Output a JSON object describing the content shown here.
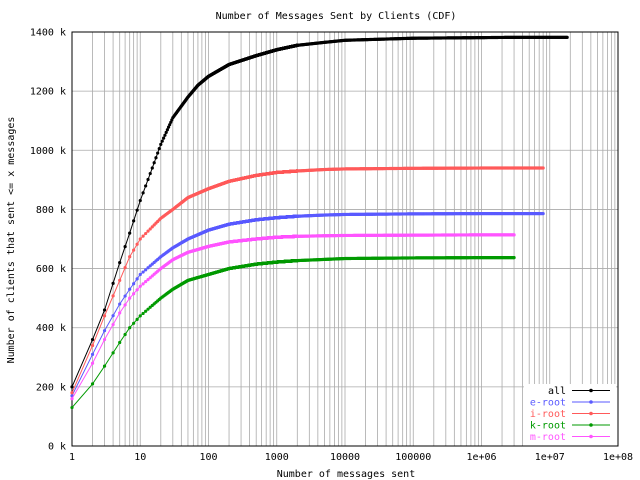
{
  "chart_data": {
    "type": "line",
    "title": "Number of Messages Sent by Clients (CDF)",
    "xlabel": "Number of messages sent",
    "ylabel": "Number of clients that sent <= x messages",
    "x_scale": "log",
    "xlim": [
      1,
      100000000
    ],
    "ylim": [
      0,
      1400000
    ],
    "grid": true,
    "legend_position": "bottom-right",
    "x_ticks": [
      {
        "value": 1,
        "label": "1"
      },
      {
        "value": 10,
        "label": "10"
      },
      {
        "value": 100,
        "label": "100"
      },
      {
        "value": 1000,
        "label": "1000"
      },
      {
        "value": 10000,
        "label": "10000"
      },
      {
        "value": 100000,
        "label": "100000"
      },
      {
        "value": 1000000,
        "label": "1e+06"
      },
      {
        "value": 10000000,
        "label": "1e+07"
      },
      {
        "value": 100000000,
        "label": "1e+08"
      }
    ],
    "y_ticks": [
      {
        "value": 0,
        "label": "0 k"
      },
      {
        "value": 200000,
        "label": "200 k"
      },
      {
        "value": 400000,
        "label": "400 k"
      },
      {
        "value": 600000,
        "label": "600 k"
      },
      {
        "value": 800000,
        "label": "800 k"
      },
      {
        "value": 1000000,
        "label": "1000 k"
      },
      {
        "value": 1200000,
        "label": "1200 k"
      },
      {
        "value": 1400000,
        "label": "1400 k"
      }
    ],
    "series": [
      {
        "name": "all",
        "color": "#000000",
        "x": [
          1,
          2,
          3,
          5,
          7,
          10,
          15,
          20,
          30,
          50,
          70,
          100,
          200,
          500,
          1000,
          2000,
          5000,
          10000,
          100000,
          1000000,
          3000000,
          8000000,
          18000000
        ],
        "y": [
          200000,
          360000,
          460000,
          620000,
          720000,
          830000,
          940000,
          1020000,
          1110000,
          1180000,
          1220000,
          1250000,
          1290000,
          1320000,
          1340000,
          1355000,
          1365000,
          1372000,
          1379000,
          1381000,
          1382000,
          1382000,
          1382000
        ]
      },
      {
        "name": "e-root",
        "color": "#5a5aff",
        "x": [
          1,
          2,
          3,
          5,
          7,
          10,
          20,
          30,
          50,
          100,
          200,
          500,
          1000,
          2000,
          5000,
          10000,
          100000,
          1000000,
          3000000,
          8000000
        ],
        "y": [
          170000,
          310000,
          390000,
          480000,
          530000,
          580000,
          640000,
          670000,
          700000,
          730000,
          750000,
          765000,
          772000,
          777000,
          781000,
          783000,
          785000,
          786000,
          786000,
          786000
        ]
      },
      {
        "name": "i-root",
        "color": "#ff5a5a",
        "x": [
          1,
          2,
          3,
          5,
          7,
          10,
          20,
          30,
          50,
          100,
          200,
          500,
          1000,
          2000,
          5000,
          10000,
          100000,
          1000000,
          3000000,
          8000000
        ],
        "y": [
          180000,
          340000,
          440000,
          560000,
          640000,
          700000,
          770000,
          800000,
          840000,
          870000,
          895000,
          915000,
          925000,
          930000,
          935000,
          937000,
          939000,
          940000,
          940000,
          940000
        ]
      },
      {
        "name": "k-root",
        "color": "#009a00",
        "x": [
          1,
          2,
          3,
          5,
          7,
          10,
          20,
          30,
          50,
          100,
          200,
          500,
          1000,
          2000,
          5000,
          10000,
          100000,
          1000000,
          3000000
        ],
        "y": [
          130000,
          210000,
          270000,
          350000,
          400000,
          440000,
          500000,
          530000,
          560000,
          580000,
          600000,
          615000,
          622000,
          627000,
          631000,
          634000,
          636000,
          637000,
          637000
        ]
      },
      {
        "name": "m-root",
        "color": "#ff55ff",
        "x": [
          1,
          2,
          3,
          5,
          7,
          10,
          20,
          30,
          50,
          100,
          200,
          500,
          1000,
          2000,
          5000,
          10000,
          100000,
          1000000,
          3000000
        ],
        "y": [
          160000,
          280000,
          360000,
          450000,
          500000,
          540000,
          600000,
          630000,
          655000,
          675000,
          690000,
          700000,
          706000,
          709000,
          711000,
          712000,
          713000,
          714000,
          714000
        ]
      }
    ]
  }
}
